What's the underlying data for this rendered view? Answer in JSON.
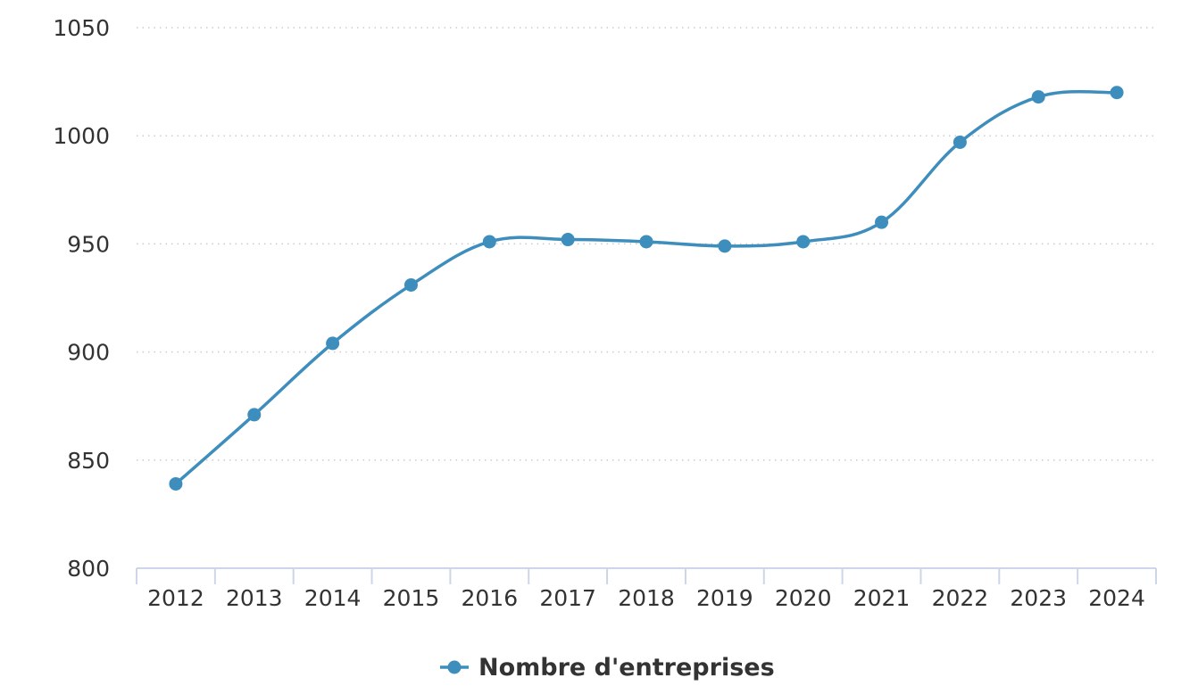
{
  "chart_data": {
    "type": "line",
    "title": "",
    "xlabel": "",
    "ylabel": "",
    "categories": [
      "2012",
      "2013",
      "2014",
      "2015",
      "2016",
      "2017",
      "2018",
      "2019",
      "2020",
      "2021",
      "2022",
      "2023",
      "2024"
    ],
    "series": [
      {
        "name": "Nombre d'entreprises",
        "color": "#3d8dbd",
        "values": [
          839,
          871,
          904,
          931,
          951,
          952,
          951,
          949,
          951,
          960,
          997,
          1018,
          1020
        ]
      }
    ],
    "ylim": [
      800,
      1050
    ],
    "yticks": [
      800,
      850,
      900,
      950,
      1000,
      1050
    ],
    "grid": true,
    "grid_style": "dotted",
    "smooth": true,
    "markers": true,
    "legend_position": "bottom-center"
  },
  "colors": {
    "series": "#3d8dbd",
    "grid": "#cccccc",
    "axis": "#ccd6eb",
    "text": "#333333"
  }
}
